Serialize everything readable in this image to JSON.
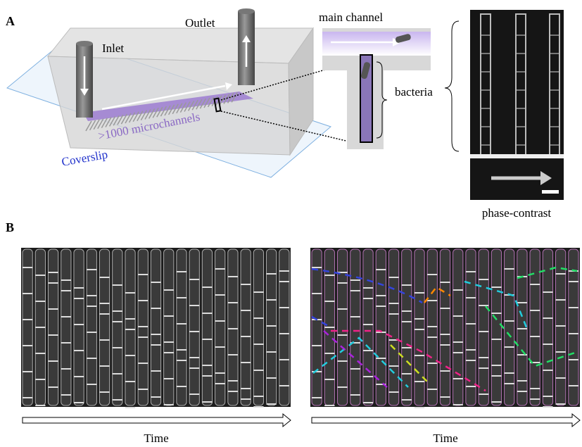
{
  "panel_a": {
    "label": "A",
    "inlet": "Inlet",
    "outlet": "Outlet",
    "main_channel": "main channel",
    "microchannels": ">1000 microchannels",
    "coverslip": "Coverslip",
    "bacteria": "bacteria",
    "phase_contrast": "phase-contrast"
  },
  "panel_b": {
    "label": "B",
    "time_axes": [
      "Time",
      "Time"
    ]
  }
}
